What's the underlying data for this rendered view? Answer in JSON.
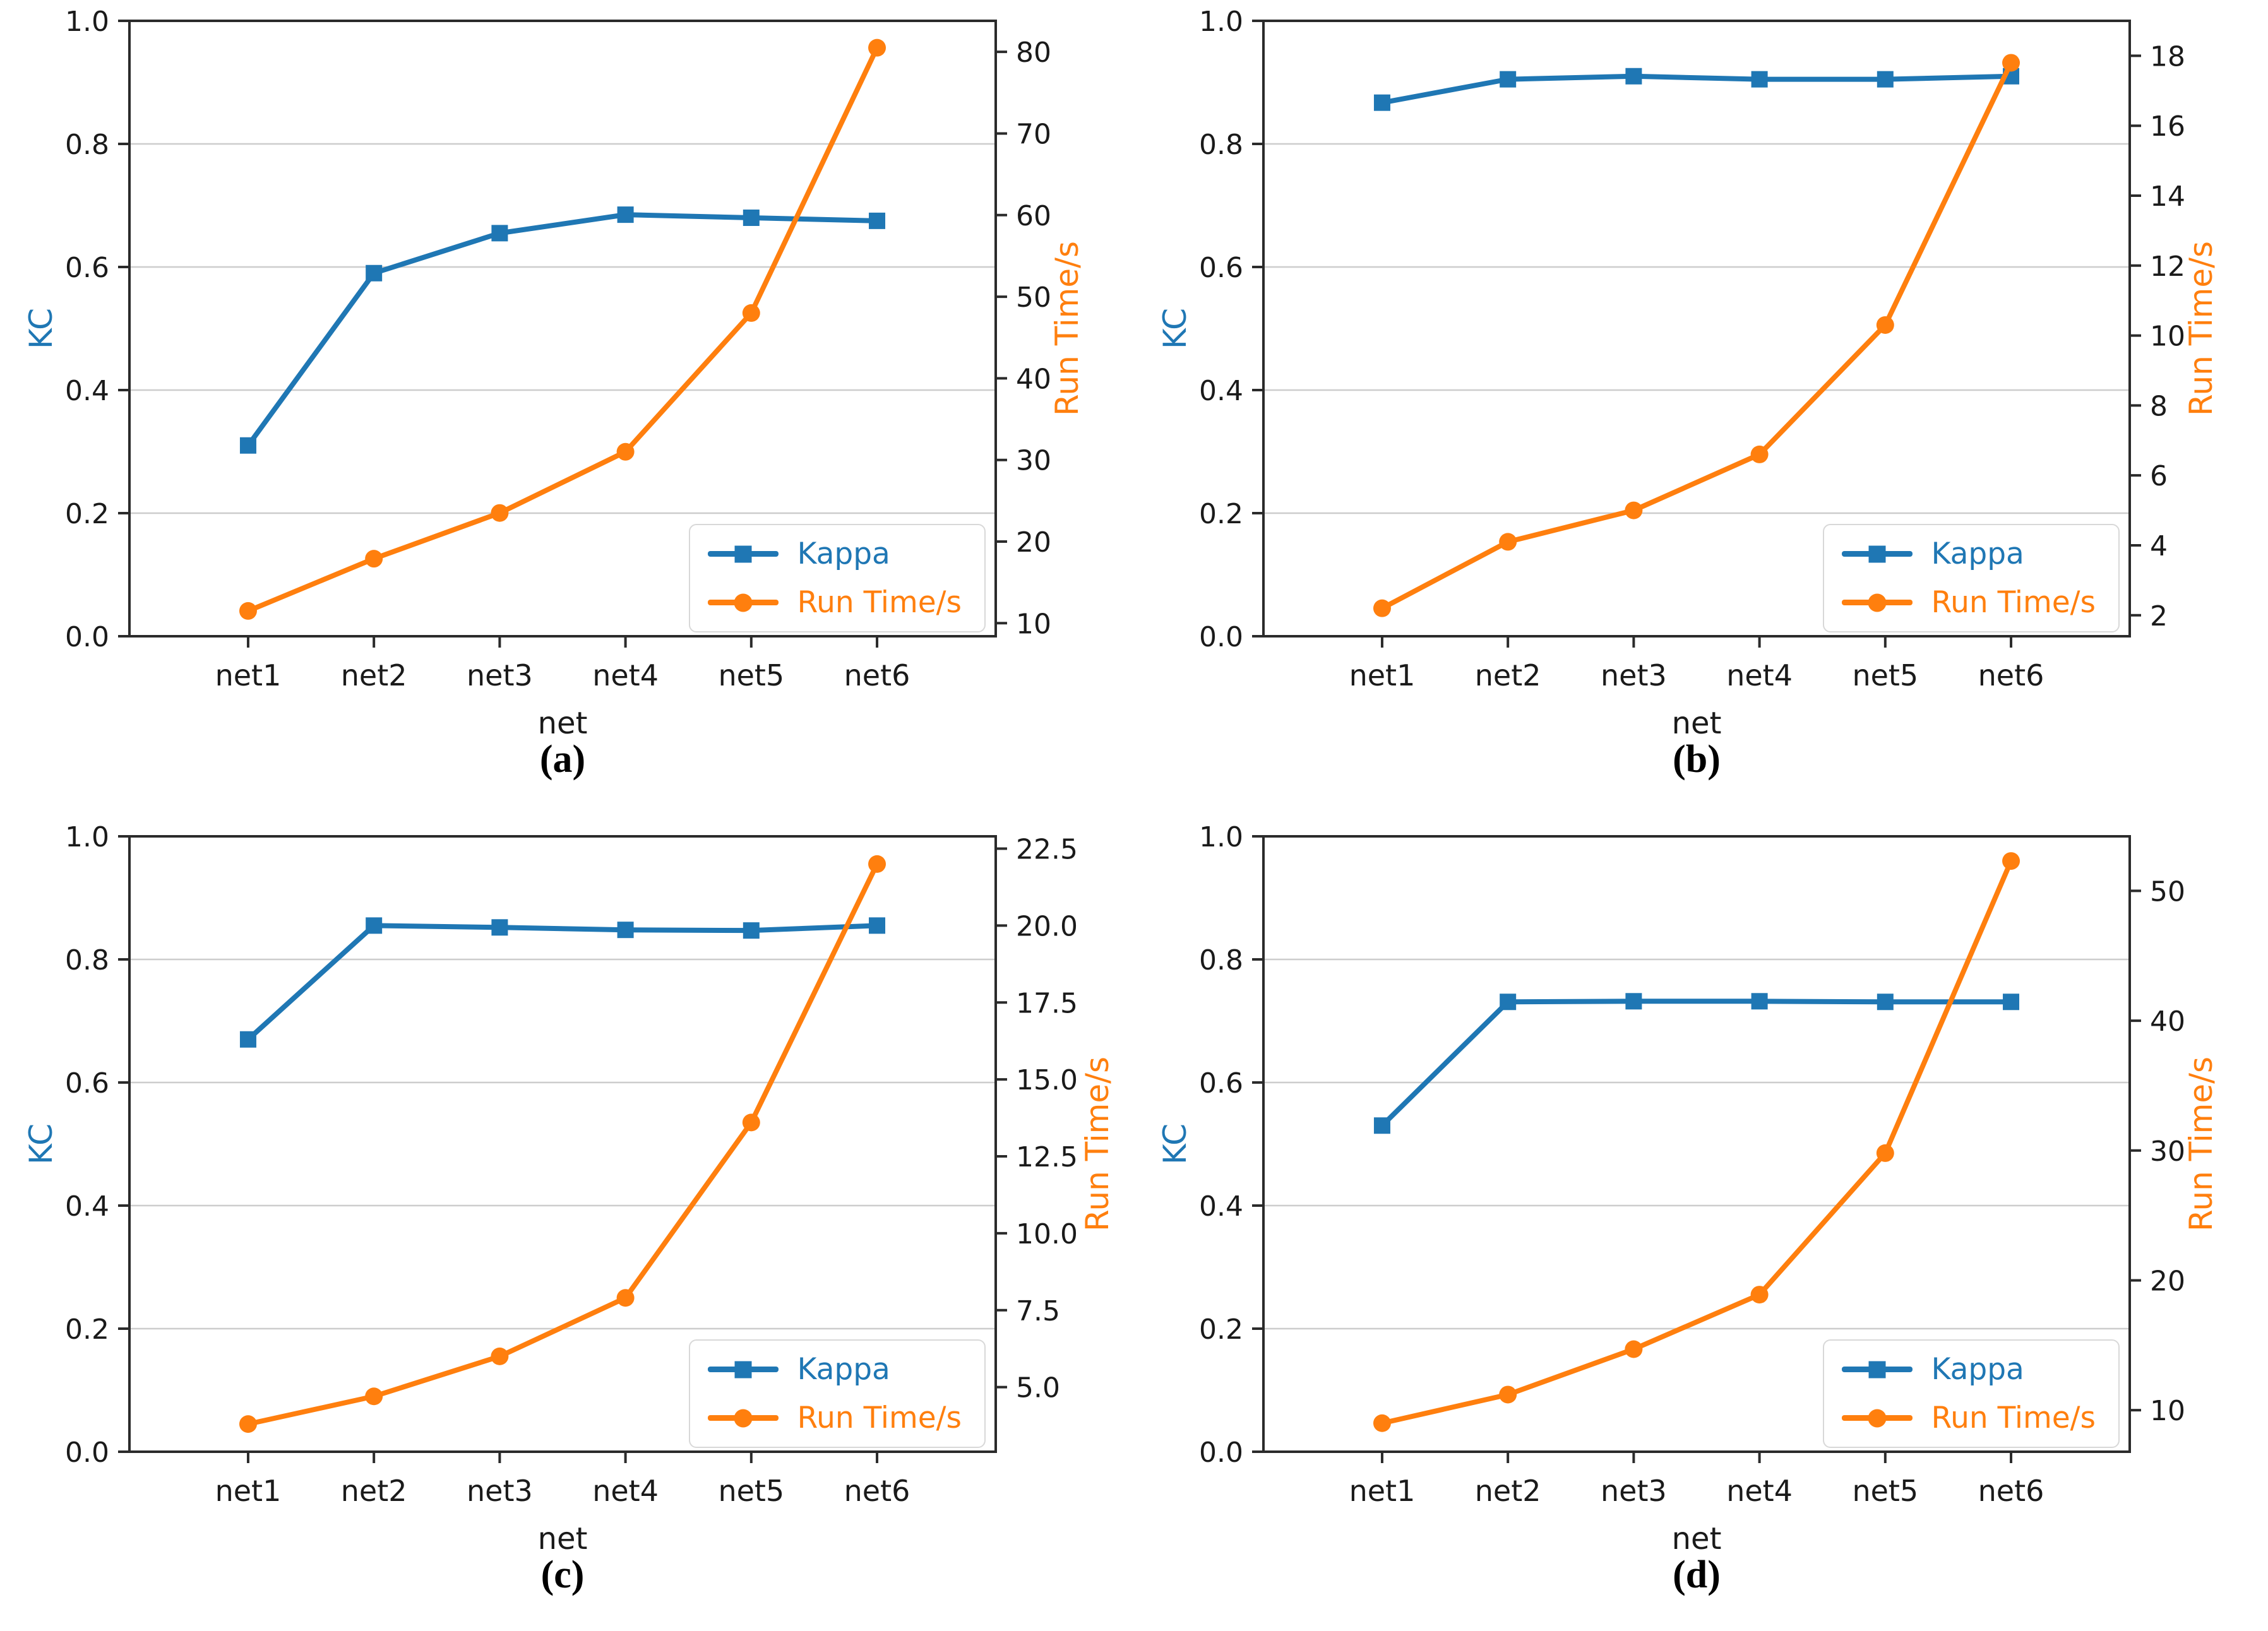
{
  "figure": {
    "background": "#ffffff",
    "grid_color": "#cdcdcd",
    "spine_color": "#2b2b2b",
    "tick_text_color": "#1a1a1a"
  },
  "chart_data": [
    {
      "id": "a",
      "caption": "(a)",
      "type": "line",
      "categories": [
        "net1",
        "net2",
        "net3",
        "net4",
        "net5",
        "net6"
      ],
      "xlabel": "net",
      "grid": true,
      "left_axis": {
        "label": "KC",
        "color": "#1f77b4",
        "min": 0,
        "max": 1,
        "tick_values": [
          0,
          0.2,
          0.4,
          0.6,
          0.8,
          1.0
        ],
        "tick_labels": [
          "0.0",
          "0.2",
          "0.4",
          "0.6",
          "0.8",
          "1.0"
        ]
      },
      "right_axis": {
        "label": "Run Time/s",
        "color": "#ff7f0e",
        "min": 8.4,
        "max": 83.8,
        "tick_values": [
          10,
          20,
          30,
          40,
          50,
          60,
          70,
          80
        ],
        "tick_labels": [
          "10",
          "20",
          "30",
          "40",
          "50",
          "60",
          "70",
          "80"
        ]
      },
      "legend": {
        "position": "lower-right",
        "entries": [
          "Kappa",
          "Run Time/s"
        ]
      },
      "series": [
        {
          "name": "Kappa",
          "axis": "left",
          "color": "#1f77b4",
          "marker": "square",
          "values": [
            0.31,
            0.59,
            0.655,
            0.685,
            0.68,
            0.675
          ]
        },
        {
          "name": "Run Time/s",
          "axis": "right",
          "color": "#ff7f0e",
          "marker": "circle",
          "values": [
            11.5,
            17.9,
            23.5,
            31.0,
            48.0,
            80.5
          ]
        }
      ]
    },
    {
      "id": "b",
      "caption": "(b)",
      "type": "line",
      "categories": [
        "net1",
        "net2",
        "net3",
        "net4",
        "net5",
        "net6"
      ],
      "xlabel": "net",
      "grid": true,
      "left_axis": {
        "label": "KC",
        "color": "#1f77b4",
        "min": 0,
        "max": 1,
        "tick_values": [
          0,
          0.2,
          0.4,
          0.6,
          0.8,
          1.0
        ],
        "tick_labels": [
          "0.0",
          "0.2",
          "0.4",
          "0.6",
          "0.8",
          "1.0"
        ]
      },
      "right_axis": {
        "label": "Run Time/s",
        "color": "#ff7f0e",
        "min": 1.4,
        "max": 19.0,
        "tick_values": [
          2,
          4,
          6,
          8,
          10,
          12,
          14,
          16,
          18
        ],
        "tick_labels": [
          "2",
          "4",
          "6",
          "8",
          "10",
          "12",
          "14",
          "16",
          "18"
        ]
      },
      "legend": {
        "position": "lower-right",
        "entries": [
          "Kappa",
          "Run Time/s"
        ]
      },
      "series": [
        {
          "name": "Kappa",
          "axis": "left",
          "color": "#1f77b4",
          "marker": "square",
          "values": [
            0.867,
            0.905,
            0.91,
            0.905,
            0.905,
            0.91
          ]
        },
        {
          "name": "Run Time/s",
          "axis": "right",
          "color": "#ff7f0e",
          "marker": "circle",
          "values": [
            2.2,
            4.1,
            5.0,
            6.6,
            10.3,
            17.8
          ]
        }
      ]
    },
    {
      "id": "c",
      "caption": "(c)",
      "type": "line",
      "categories": [
        "net1",
        "net2",
        "net3",
        "net4",
        "net5",
        "net6"
      ],
      "xlabel": "net",
      "grid": true,
      "left_axis": {
        "label": "KC",
        "color": "#1f77b4",
        "min": 0,
        "max": 1,
        "tick_values": [
          0,
          0.2,
          0.4,
          0.6,
          0.8,
          1.0
        ],
        "tick_labels": [
          "0.0",
          "0.2",
          "0.4",
          "0.6",
          "0.8",
          "1.0"
        ]
      },
      "right_axis": {
        "label": "Run Time/s",
        "color": "#ff7f0e",
        "min": 2.9,
        "max": 22.9,
        "tick_values": [
          5.0,
          7.5,
          10.0,
          12.5,
          15.0,
          17.5,
          20.0,
          22.5
        ],
        "tick_labels": [
          "5.0",
          "7.5",
          "10.0",
          "12.5",
          "15.0",
          "17.5",
          "20.0",
          "22.5"
        ]
      },
      "legend": {
        "position": "lower-right",
        "entries": [
          "Kappa",
          "Run Time/s"
        ]
      },
      "series": [
        {
          "name": "Kappa",
          "axis": "left",
          "color": "#1f77b4",
          "marker": "square",
          "values": [
            0.67,
            0.855,
            0.852,
            0.848,
            0.847,
            0.855
          ]
        },
        {
          "name": "Run Time/s",
          "axis": "right",
          "color": "#ff7f0e",
          "marker": "circle",
          "values": [
            3.8,
            4.7,
            6.0,
            7.9,
            13.6,
            22.0
          ]
        }
      ]
    },
    {
      "id": "d",
      "caption": "(d)",
      "type": "line",
      "categories": [
        "net1",
        "net2",
        "net3",
        "net4",
        "net5",
        "net6"
      ],
      "xlabel": "net",
      "grid": true,
      "left_axis": {
        "label": "KC",
        "color": "#1f77b4",
        "min": 0,
        "max": 1,
        "tick_values": [
          0,
          0.2,
          0.4,
          0.6,
          0.8,
          1.0
        ],
        "tick_labels": [
          "0.0",
          "0.2",
          "0.4",
          "0.6",
          "0.8",
          "1.0"
        ]
      },
      "right_axis": {
        "label": "Run Time/s",
        "color": "#ff7f0e",
        "min": 6.8,
        "max": 54.2,
        "tick_values": [
          10,
          20,
          30,
          40,
          50
        ],
        "tick_labels": [
          "10",
          "20",
          "30",
          "40",
          "50"
        ]
      },
      "legend": {
        "position": "lower-right",
        "entries": [
          "Kappa",
          "Run Time/s"
        ]
      },
      "series": [
        {
          "name": "Kappa",
          "axis": "left",
          "color": "#1f77b4",
          "marker": "square",
          "values": [
            0.53,
            0.731,
            0.732,
            0.732,
            0.731,
            0.731
          ]
        },
        {
          "name": "Run Time/s",
          "axis": "right",
          "color": "#ff7f0e",
          "marker": "circle",
          "values": [
            9.0,
            11.2,
            14.7,
            18.9,
            29.8,
            52.3
          ]
        }
      ]
    }
  ]
}
